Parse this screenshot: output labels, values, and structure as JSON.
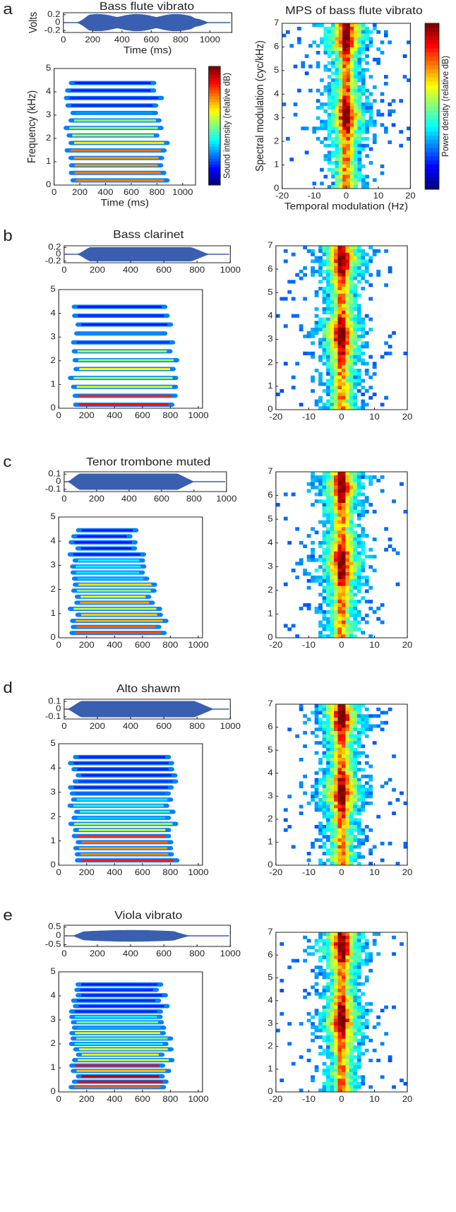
{
  "panels": [
    {
      "label": "a",
      "title": "Bass flute vibrato",
      "waveform": {
        "ylabel": "Volts",
        "xlabel": "Time (ms)",
        "ylim": [
          -0.25,
          0.25
        ],
        "yticks": [
          -0.2,
          0,
          0.2
        ],
        "xlim": [
          0,
          1150
        ],
        "xticks": [
          0,
          200,
          400,
          600,
          800,
          1000
        ]
      },
      "spectrogram": {
        "ylabel": "Frequency (kHz)",
        "xlabel": "Time (ms)",
        "colorbar_label": "Sound intensity (relative dB)",
        "ylim": [
          0,
          5
        ],
        "yticks": [
          0,
          1,
          2,
          3,
          4,
          5
        ],
        "xlim": [
          0,
          1100
        ],
        "xticks": [
          0,
          200,
          400,
          600,
          800,
          1000
        ]
      },
      "mps": {
        "title": "MPS of bass flute vibrato",
        "ylabel": "Spectral modulation (cyc/kHz)",
        "xlabel": "Temporal modulation (Hz)",
        "colorbar_label": "Power density (relative dB)",
        "ylim": [
          0,
          7
        ],
        "yticks": [
          0,
          1,
          2,
          3,
          4,
          5,
          6,
          7
        ],
        "xlim": [
          -20,
          20
        ],
        "xticks": [
          -20,
          -10,
          0,
          10,
          20
        ]
      }
    },
    {
      "label": "b",
      "title": "Bass clarinet",
      "waveform": {
        "ylim": [
          -0.25,
          0.25
        ],
        "yticks": [
          -0.2,
          0,
          0.2
        ],
        "xlim": [
          0,
          1000
        ],
        "xticks": [
          0,
          200,
          400,
          600,
          800,
          1000
        ]
      },
      "spectrogram": {
        "ylim": [
          0,
          5
        ],
        "yticks": [
          0,
          1,
          2,
          3,
          4,
          5
        ],
        "xlim": [
          0,
          1030
        ],
        "xticks": [
          0,
          200,
          400,
          600,
          800,
          1000
        ]
      },
      "mps": {
        "ylim": [
          0,
          7
        ],
        "yticks": [
          0,
          1,
          2,
          3,
          4,
          5,
          6,
          7
        ],
        "xlim": [
          -20,
          20
        ],
        "xticks": [
          -20,
          -10,
          0,
          10,
          20
        ]
      }
    },
    {
      "label": "c",
      "title": "Tenor trombone muted",
      "waveform": {
        "ylim": [
          -0.13,
          0.13
        ],
        "yticks": [
          -0.1,
          0,
          0.1
        ],
        "xlim": [
          0,
          1000
        ],
        "xticks": [
          0,
          200,
          400,
          600,
          800,
          1000
        ]
      },
      "spectrogram": {
        "ylim": [
          0,
          5
        ],
        "yticks": [
          0,
          1,
          2,
          3,
          4,
          5
        ],
        "xlim": [
          0,
          1030
        ],
        "xticks": [
          0,
          200,
          400,
          600,
          800,
          1000
        ]
      },
      "mps": {
        "ylim": [
          0,
          7
        ],
        "yticks": [
          0,
          1,
          2,
          3,
          4,
          5,
          6,
          7
        ],
        "xlim": [
          -20,
          20
        ],
        "xticks": [
          -20,
          -10,
          0,
          10,
          20
        ]
      }
    },
    {
      "label": "d",
      "title": "Alto shawm",
      "waveform": {
        "ylim": [
          -0.13,
          0.13
        ],
        "yticks": [
          -0.1,
          0,
          0.1
        ],
        "xlim": [
          0,
          1000
        ],
        "xticks": [
          0,
          200,
          400,
          600,
          800,
          1000
        ]
      },
      "spectrogram": {
        "ylim": [
          0,
          5
        ],
        "yticks": [
          0,
          1,
          2,
          3,
          4,
          5
        ],
        "xlim": [
          0,
          1030
        ],
        "xticks": [
          0,
          200,
          400,
          600,
          800,
          1000
        ]
      },
      "mps": {
        "ylim": [
          0,
          7
        ],
        "yticks": [
          0,
          1,
          2,
          3,
          4,
          5,
          6,
          7
        ],
        "xlim": [
          -20,
          20
        ],
        "xticks": [
          -20,
          -10,
          0,
          10,
          20
        ]
      }
    },
    {
      "label": "e",
      "title": "Viola vibrato",
      "waveform": {
        "ylim": [
          -0.6,
          0.6
        ],
        "yticks": [
          -0.5,
          0,
          0.5
        ],
        "xlim": [
          0,
          1000
        ],
        "xticks": [
          0,
          200,
          400,
          600,
          800,
          1000
        ]
      },
      "spectrogram": {
        "ylim": [
          0,
          5
        ],
        "yticks": [
          0,
          1,
          2,
          3,
          4,
          5
        ],
        "xlim": [
          0,
          1030
        ],
        "xticks": [
          0,
          200,
          400,
          600,
          800,
          1000
        ]
      },
      "mps": {
        "ylim": [
          0,
          7
        ],
        "yticks": [
          0,
          1,
          2,
          3,
          4,
          5,
          6,
          7
        ],
        "xlim": [
          -20,
          20
        ],
        "xticks": [
          -20,
          -10,
          0,
          10,
          20
        ]
      }
    }
  ]
}
